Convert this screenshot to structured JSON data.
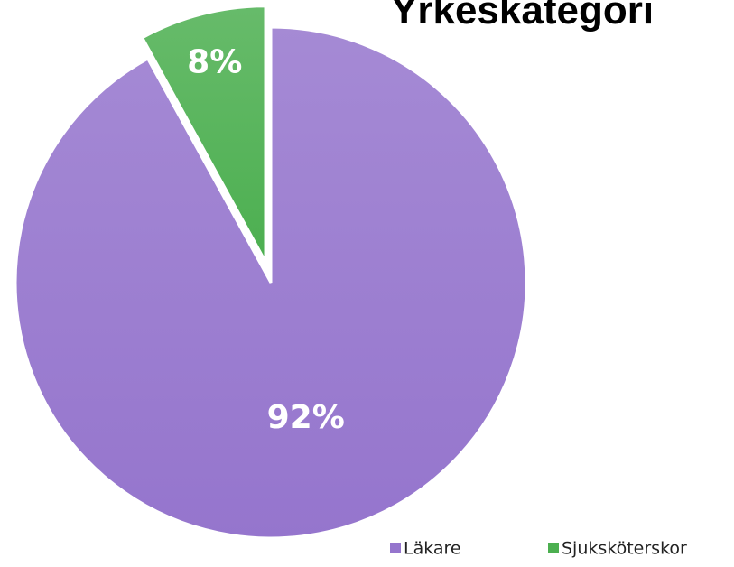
{
  "chart_data": {
    "type": "pie",
    "title": "Yrkeskategori",
    "categories": [
      "Läkare",
      "Sjuksköterskor"
    ],
    "values": [
      92,
      8
    ],
    "value_labels": [
      "92%",
      "8%"
    ],
    "colors": [
      "#9575cd",
      "#4caf50"
    ],
    "legend": "bottom-right"
  }
}
